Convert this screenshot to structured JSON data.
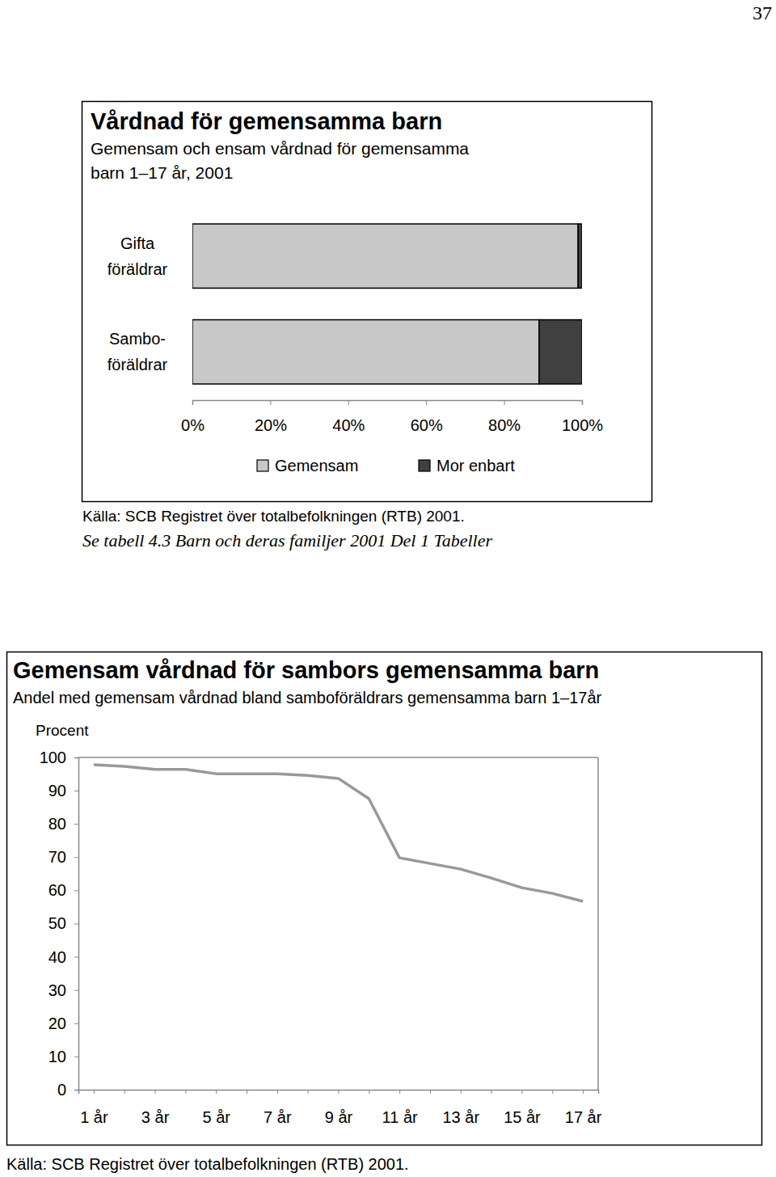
{
  "page": {
    "number": "37"
  },
  "chart_data": [
    {
      "type": "bar",
      "orientation": "horizontal",
      "stacked": true,
      "title": "Vårdnad för gemensamma barn",
      "subtitle": "Gemensam och ensam vårdnad för gemensamma\nbarn 1–17 år, 2001",
      "categories": [
        "Gifta\nföräldrar",
        "Sambo-\nföräldrar"
      ],
      "series": [
        {
          "name": "Gemensam",
          "color": "#c8c8c8",
          "values": [
            99,
            89
          ]
        },
        {
          "name": "Mor enbart",
          "color": "#404040",
          "values": [
            1,
            11
          ]
        }
      ],
      "xlim": [
        0,
        100
      ],
      "xticks": [
        {
          "value": 0,
          "label": "0%"
        },
        {
          "value": 20,
          "label": "20%"
        },
        {
          "value": 40,
          "label": "40%"
        },
        {
          "value": 60,
          "label": "60%"
        },
        {
          "value": 80,
          "label": "80%"
        },
        {
          "value": 100,
          "label": "100%"
        }
      ],
      "legend": "bottom",
      "grid": false,
      "source": "Källa: SCB Registret över  totalbefolkningen (RTB) 2001.",
      "note": "Se tabell 4.3 Barn och deras familjer 2001 Del 1 Tabeller"
    },
    {
      "type": "line",
      "title": "Gemensam vårdnad för sambors gemensamma barn",
      "subtitle": "Andel med gemensam vårdnad bland samboföräldrars gemensamma barn 1–17år",
      "y_label": "Procent",
      "categories": [
        "1 år",
        null,
        "3 år",
        null,
        "5 år",
        null,
        "7 år",
        null,
        "9 år",
        null,
        "11 år",
        null,
        "13 år",
        null,
        "15 år",
        null,
        "17 år"
      ],
      "values": [
        97.8,
        97.3,
        96.4,
        96.4,
        95.1,
        95.1,
        95.1,
        94.6,
        93.7,
        87.6,
        69.8,
        68.1,
        66.4,
        63.7,
        60.8,
        59.1,
        56.7
      ],
      "color": "#999999",
      "ylim": [
        0,
        100
      ],
      "yticks": [
        0,
        10,
        20,
        30,
        40,
        50,
        60,
        70,
        80,
        90,
        100
      ],
      "grid": false,
      "source": "Källa: SCB Registret över  totalbefolkningen (RTB) 2001."
    }
  ]
}
